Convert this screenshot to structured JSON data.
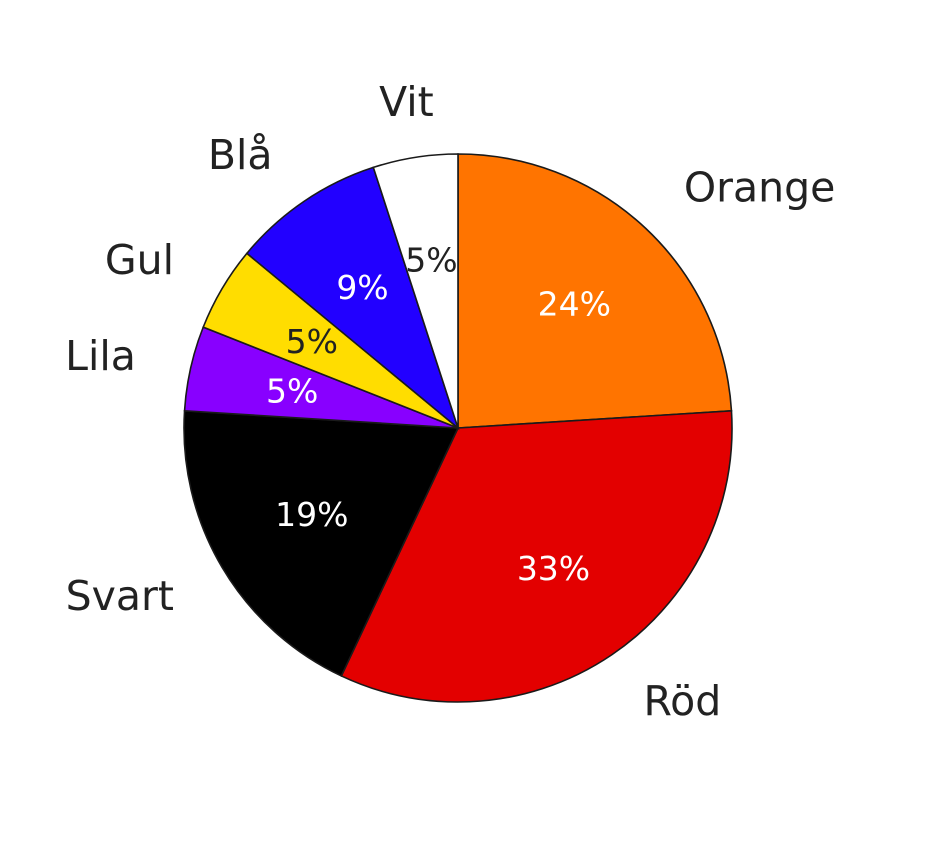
{
  "chart_data": {
    "type": "pie",
    "slices": [
      {
        "label": "Orange",
        "value": 24,
        "value_label": "24%",
        "color": "#FF7400",
        "text_color": "#FFFFFF"
      },
      {
        "label": "Röd",
        "value": 33,
        "value_label": "33%",
        "color": "#E30000",
        "text_color": "#FFFFFF"
      },
      {
        "label": "Svart",
        "value": 19,
        "value_label": "19%",
        "color": "#000000",
        "text_color": "#FFFFFF"
      },
      {
        "label": "Lila",
        "value": 5,
        "value_label": "5%",
        "color": "#8800FF",
        "text_color": "#FFFFFF"
      },
      {
        "label": "Gul",
        "value": 5,
        "value_label": "5%",
        "color": "#FFDD00",
        "text_color": "#222222"
      },
      {
        "label": "Blå",
        "value": 9,
        "value_label": "9%",
        "color": "#2200FF",
        "text_color": "#FFFFFF"
      },
      {
        "label": "Vit",
        "value": 5,
        "value_label": "5%",
        "color": "#FFFFFF",
        "text_color": "#222222"
      }
    ],
    "start_angle": "12 o'clock",
    "direction": "clockwise",
    "legend": "none"
  }
}
